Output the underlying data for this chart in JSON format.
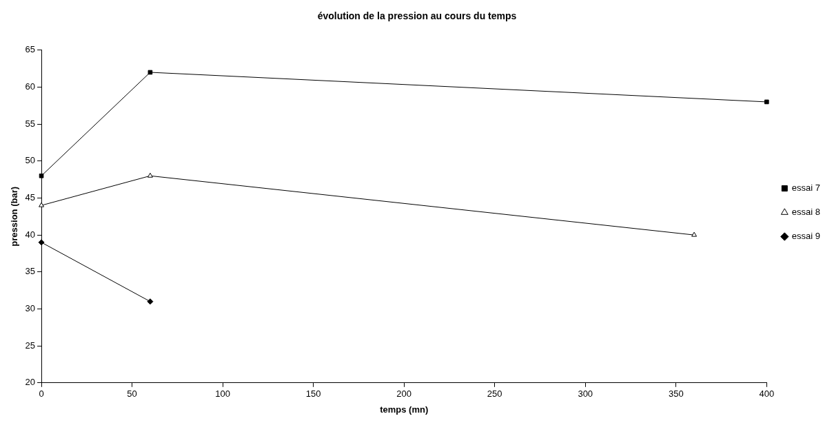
{
  "chart_data": {
    "type": "line",
    "title": "évolution de la pression au cours du temps",
    "xlabel": "temps (mn)",
    "ylabel": "pression (bar)",
    "series": [
      {
        "name": "essai 7",
        "color": "#000000",
        "marker": "square",
        "x": [
          0,
          60,
          400
        ],
        "values": [
          48,
          62,
          58
        ]
      },
      {
        "name": "essai 8",
        "color": "#000000",
        "marker": "triangle",
        "x": [
          0,
          60,
          360
        ],
        "values": [
          44,
          48,
          40
        ]
      },
      {
        "name": "essai 9",
        "color": "#000000",
        "marker": "diamond",
        "x": [
          0,
          60
        ],
        "values": [
          39,
          31
        ]
      }
    ],
    "xlim": [
      0,
      400
    ],
    "xticks": [
      0,
      50,
      100,
      150,
      200,
      250,
      300,
      350,
      400
    ],
    "ylim": [
      20,
      65
    ],
    "yticks": [
      20,
      25,
      30,
      35,
      40,
      45,
      50,
      55,
      60,
      65
    ],
    "grid": false,
    "legend": "right",
    "line_style": "solid"
  }
}
